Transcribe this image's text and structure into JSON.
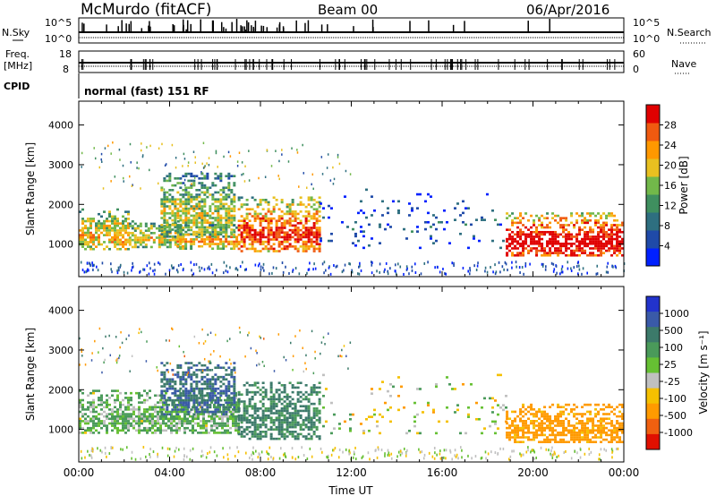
{
  "header": {
    "station": "McMurdo (fitACF)",
    "beam": "Beam 00",
    "date": "06/Apr/2016"
  },
  "params": {
    "nsky_label": "N.Sky",
    "nsearch_label": "N.Search",
    "freq_label_1": "Freq.",
    "freq_label_2": "[MHz]",
    "cpid_label": "CPID",
    "nave_label": "Nave",
    "noise_ticks_left": [
      "10^5",
      "10^0"
    ],
    "noise_ticks_right": [
      "10^5",
      "10^0"
    ],
    "freq_ticks": [
      "18",
      "8"
    ],
    "nave_ticks": [
      "60",
      "0"
    ],
    "cpid_text": "normal (fast) 151 RF"
  },
  "chart_data": [
    {
      "type": "heatmap",
      "name": "power",
      "ylabel": "Slant Range [km]",
      "xlim": [
        0,
        24
      ],
      "ylim": [
        180,
        4600
      ],
      "yticks": [
        "1000",
        "2000",
        "3000",
        "4000"
      ],
      "colorbar": {
        "label": "Power [dB]",
        "range": [
          0,
          32
        ],
        "ticks": [
          "4",
          "8",
          "12",
          "16",
          "20",
          "24",
          "28"
        ],
        "colors": [
          "#0020ff",
          "#1f4aa8",
          "#2e6f80",
          "#3f8f5f",
          "#72b84a",
          "#e8c020",
          "#ff9800",
          "#f05a10",
          "#e00000"
        ]
      },
      "echo_regions": [
        {
          "t0": 0.0,
          "t1": 2.2,
          "r0": 900,
          "r1": 1900,
          "level": 0.55
        },
        {
          "t0": 2.2,
          "t1": 4.5,
          "r0": 950,
          "r1": 1600,
          "level": 0.5
        },
        {
          "t0": 3.6,
          "t1": 6.8,
          "r0": 1200,
          "r1": 2800,
          "level": 0.45
        },
        {
          "t0": 4.3,
          "t1": 7.0,
          "r0": 900,
          "r1": 1500,
          "level": 0.55
        },
        {
          "t0": 7.0,
          "t1": 10.6,
          "r0": 800,
          "r1": 2200,
          "level": 0.72
        },
        {
          "t0": 10.6,
          "t1": 18.8,
          "r0": 900,
          "r1": 2400,
          "level": 0.15
        },
        {
          "t0": 18.8,
          "t1": 24.0,
          "r0": 700,
          "r1": 1800,
          "level": 0.85
        }
      ]
    },
    {
      "type": "heatmap",
      "name": "velocity",
      "xlabel": "Time UT",
      "ylabel": "Slant Range [km]",
      "xlim": [
        0,
        24
      ],
      "ylim": [
        180,
        4600
      ],
      "xticks": [
        "00:00",
        "04:00",
        "08:00",
        "12:00",
        "16:00",
        "20:00",
        "00:00"
      ],
      "yticks": [
        "1000",
        "2000",
        "3000",
        "4000"
      ],
      "colorbar": {
        "label": "Velocity [m s⁻¹]",
        "ticks": [
          "1000",
          "500",
          "100",
          "25",
          "-25",
          "-100",
          "-500",
          "-1000"
        ],
        "colors": [
          "#2233cc",
          "#3a5aa8",
          "#3c7a6a",
          "#4a9a5a",
          "#66c033",
          "#c0c0c0",
          "#f5c000",
          "#ff9a00",
          "#f06010",
          "#e01000"
        ]
      },
      "echo_regions": [
        {
          "t0": 0.0,
          "t1": 7.0,
          "r0": 900,
          "r1": 2000,
          "v": 100
        },
        {
          "t0": 3.6,
          "t1": 6.8,
          "r0": 1400,
          "r1": 2700,
          "v": 500
        },
        {
          "t0": 7.0,
          "t1": 10.6,
          "r0": 750,
          "r1": 2200,
          "v": 300
        },
        {
          "t0": 10.6,
          "t1": 18.8,
          "r0": 900,
          "r1": 2400,
          "v": 0
        },
        {
          "t0": 18.8,
          "t1": 24.0,
          "r0": 700,
          "r1": 1650,
          "v": -200
        }
      ]
    }
  ]
}
